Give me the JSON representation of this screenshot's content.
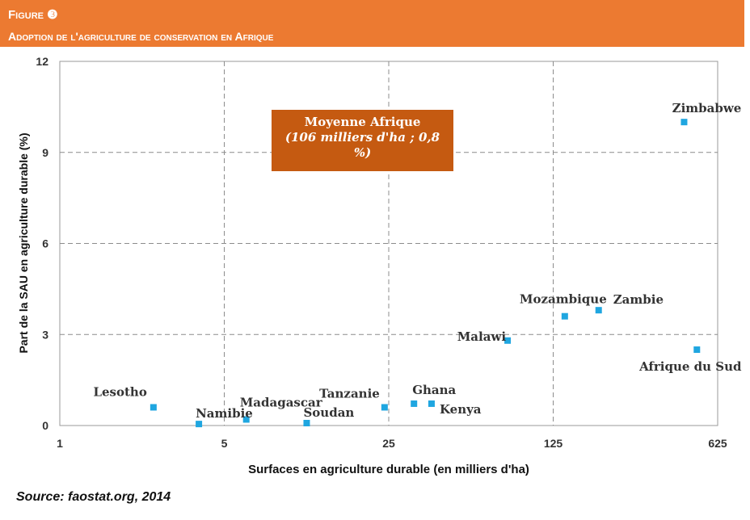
{
  "header": {
    "figure_label": "Figure ❸",
    "title": "Adoption de l'agriculture de conservation en Afrique"
  },
  "source": "Source: faostat.org, 2014",
  "colors": {
    "header_bg": "#ec7a31",
    "annotation_bg": "#c55a11",
    "marker": "#1fa6e0"
  },
  "chart_data": {
    "type": "scatter",
    "x_scale": "log",
    "xlabel": "Surfaces en agriculture durable (en milliers d'ha)",
    "ylabel": "Part de la SAU en agriculture durable (%)",
    "xlim": [
      1,
      625
    ],
    "ylim": [
      0,
      12
    ],
    "x_ticks": [
      1,
      5,
      25,
      125,
      625
    ],
    "x_tick_labels": [
      "1",
      "5",
      "25",
      "125",
      "625"
    ],
    "y_ticks": [
      0,
      3,
      6,
      9,
      12
    ],
    "y_tick_labels": [
      "0",
      "3",
      "6",
      "9",
      "12"
    ],
    "grid": true,
    "annotation": {
      "line1": "Moyenne Afrique",
      "line2": "(106 milliers d'ha ; 0,8",
      "line3": "%)"
    },
    "points": [
      {
        "label": "Lesotho",
        "x": 2.5,
        "y": 0.6
      },
      {
        "label": "Namibie",
        "x": 3.9,
        "y": 0.05
      },
      {
        "label": "Madagascar",
        "x": 6.2,
        "y": 0.2
      },
      {
        "label": "Soudan",
        "x": 11.2,
        "y": 0.08
      },
      {
        "label": "Tanzanie",
        "x": 24,
        "y": 0.6
      },
      {
        "label": "Ghana",
        "x": 32,
        "y": 0.72
      },
      {
        "label": "Kenya",
        "x": 38,
        "y": 0.72
      },
      {
        "label": "Malawi",
        "x": 80,
        "y": 2.8
      },
      {
        "label": "Mozambique",
        "x": 140,
        "y": 3.6
      },
      {
        "label": "Zambie",
        "x": 195,
        "y": 3.8
      },
      {
        "label": "Zimbabwe",
        "x": 450,
        "y": 10
      },
      {
        "label": "Afrique du Sud",
        "x": 510,
        "y": 2.5
      }
    ]
  }
}
